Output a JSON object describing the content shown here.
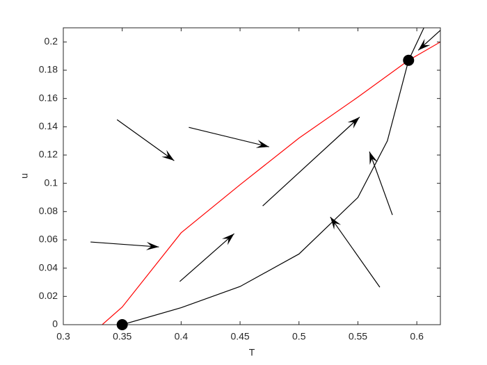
{
  "chart_data": {
    "type": "line",
    "xlabel": "T",
    "ylabel": "u",
    "xlim": [
      0.3,
      0.62
    ],
    "ylim": [
      0,
      0.21
    ],
    "xticks": [
      0.3,
      0.35,
      0.4,
      0.45,
      0.5,
      0.55,
      0.6
    ],
    "yticks": [
      0,
      0.02,
      0.04,
      0.06,
      0.08,
      0.1,
      0.12,
      0.14,
      0.16,
      0.18,
      0.2
    ],
    "grid": false,
    "series": [
      {
        "color": "#ff0000",
        "x": [
          0.333,
          0.35,
          0.4,
          0.45,
          0.5,
          0.55,
          0.593,
          0.62
        ],
        "values": [
          0,
          0.0125,
          0.065,
          0.099,
          0.132,
          0.161,
          0.187,
          0.2
        ]
      },
      {
        "color": "#000000",
        "x": [
          0.35,
          0.4,
          0.45,
          0.5,
          0.55,
          0.575,
          0.593,
          0.606
        ],
        "values": [
          0,
          0.012,
          0.027,
          0.05,
          0.09,
          0.13,
          0.187,
          0.21
        ]
      }
    ],
    "arrows": [
      {
        "x": [
          0.3456,
          0.3941
        ],
        "y": [
          0.145,
          0.116
        ]
      },
      {
        "x": [
          0.4065,
          0.4746
        ],
        "y": [
          0.1396,
          0.1258
        ]
      },
      {
        "x": [
          0.3231,
          0.3811
        ],
        "y": [
          0.0585,
          0.055
        ]
      },
      {
        "x": [
          0.3988,
          0.445
        ],
        "y": [
          0.0305,
          0.0644
        ]
      },
      {
        "x": [
          0.4692,
          0.5515
        ],
        "y": [
          0.084,
          0.1469
        ]
      },
      {
        "x": [
          0.5686,
          0.5266
        ],
        "y": [
          0.0265,
          0.0762
        ]
      },
      {
        "x": [
          0.5793,
          0.5598
        ],
        "y": [
          0.0776,
          0.1224
        ]
      },
      {
        "x": [
          0.6207,
          0.6012
        ],
        "y": [
          0.2088,
          0.1941
        ]
      }
    ],
    "points": {
      "color": "#000000",
      "x": [
        0.35,
        0.593
      ],
      "y": [
        0,
        0.187
      ]
    }
  }
}
